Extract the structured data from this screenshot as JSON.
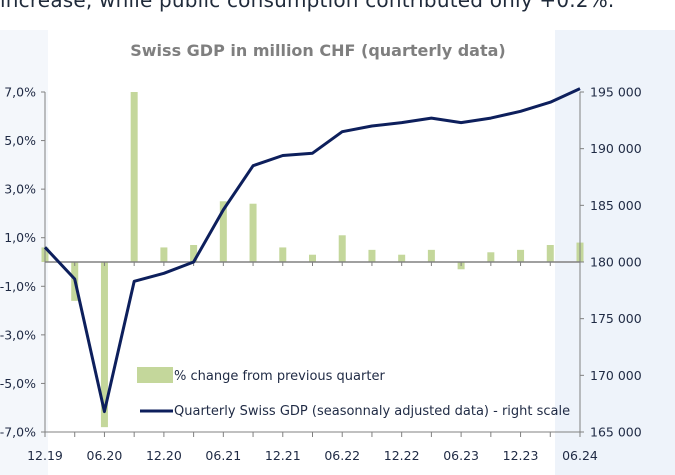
{
  "intro_text": "increase, while public consumption contributed only +0.2%.",
  "chart_data": {
    "type": "bar+line",
    "title": "Swiss GDP in million CHF (quarterly data)",
    "x_tick_labels": [
      "12.19",
      "06.20",
      "12.20",
      "06.21",
      "12.21",
      "06.22",
      "12.22",
      "06.23",
      "12.23",
      "06.24"
    ],
    "quarters": [
      "12.19",
      "03.20",
      "06.20",
      "09.20",
      "12.20",
      "03.21",
      "06.21",
      "09.21",
      "12.21",
      "03.22",
      "06.22",
      "09.22",
      "12.22",
      "03.23",
      "06.23",
      "09.23",
      "12.23",
      "03.24",
      "06.24"
    ],
    "left_axis": {
      "ylim": [
        -7,
        7
      ],
      "ticks": [
        "7,0%",
        "5,0%",
        "3,0%",
        "1,0%",
        "-1,0%",
        "-3,0%",
        "-5,0%",
        "-7,0%"
      ]
    },
    "right_axis": {
      "ylim": [
        165000,
        195000
      ],
      "ticks": [
        "195 000",
        "190 000",
        "185 000",
        "180 000",
        "175 000",
        "170 000",
        "165 000"
      ]
    },
    "series": [
      {
        "name": "% change from previous quarter",
        "type": "bar",
        "axis": "left",
        "color": "#c4d79b",
        "values": [
          0.6,
          -1.6,
          -6.8,
          7.0,
          0.6,
          0.7,
          2.5,
          2.4,
          0.6,
          0.3,
          1.1,
          0.5,
          0.3,
          0.5,
          -0.3,
          0.4,
          0.5,
          0.7,
          0.8
        ]
      },
      {
        "name": "Quarterly Swiss GDP (seasonnaly adjusted data) - right scale",
        "type": "line",
        "axis": "right",
        "color": "#0d1f5c",
        "values": [
          181300,
          178500,
          166800,
          178300,
          179000,
          180000,
          184600,
          188500,
          189400,
          189600,
          191500,
          192000,
          192300,
          192700,
          192300,
          192700,
          193300,
          194100,
          195300
        ]
      }
    ],
    "legend": {
      "position": "bottom-center"
    },
    "grid": false
  }
}
